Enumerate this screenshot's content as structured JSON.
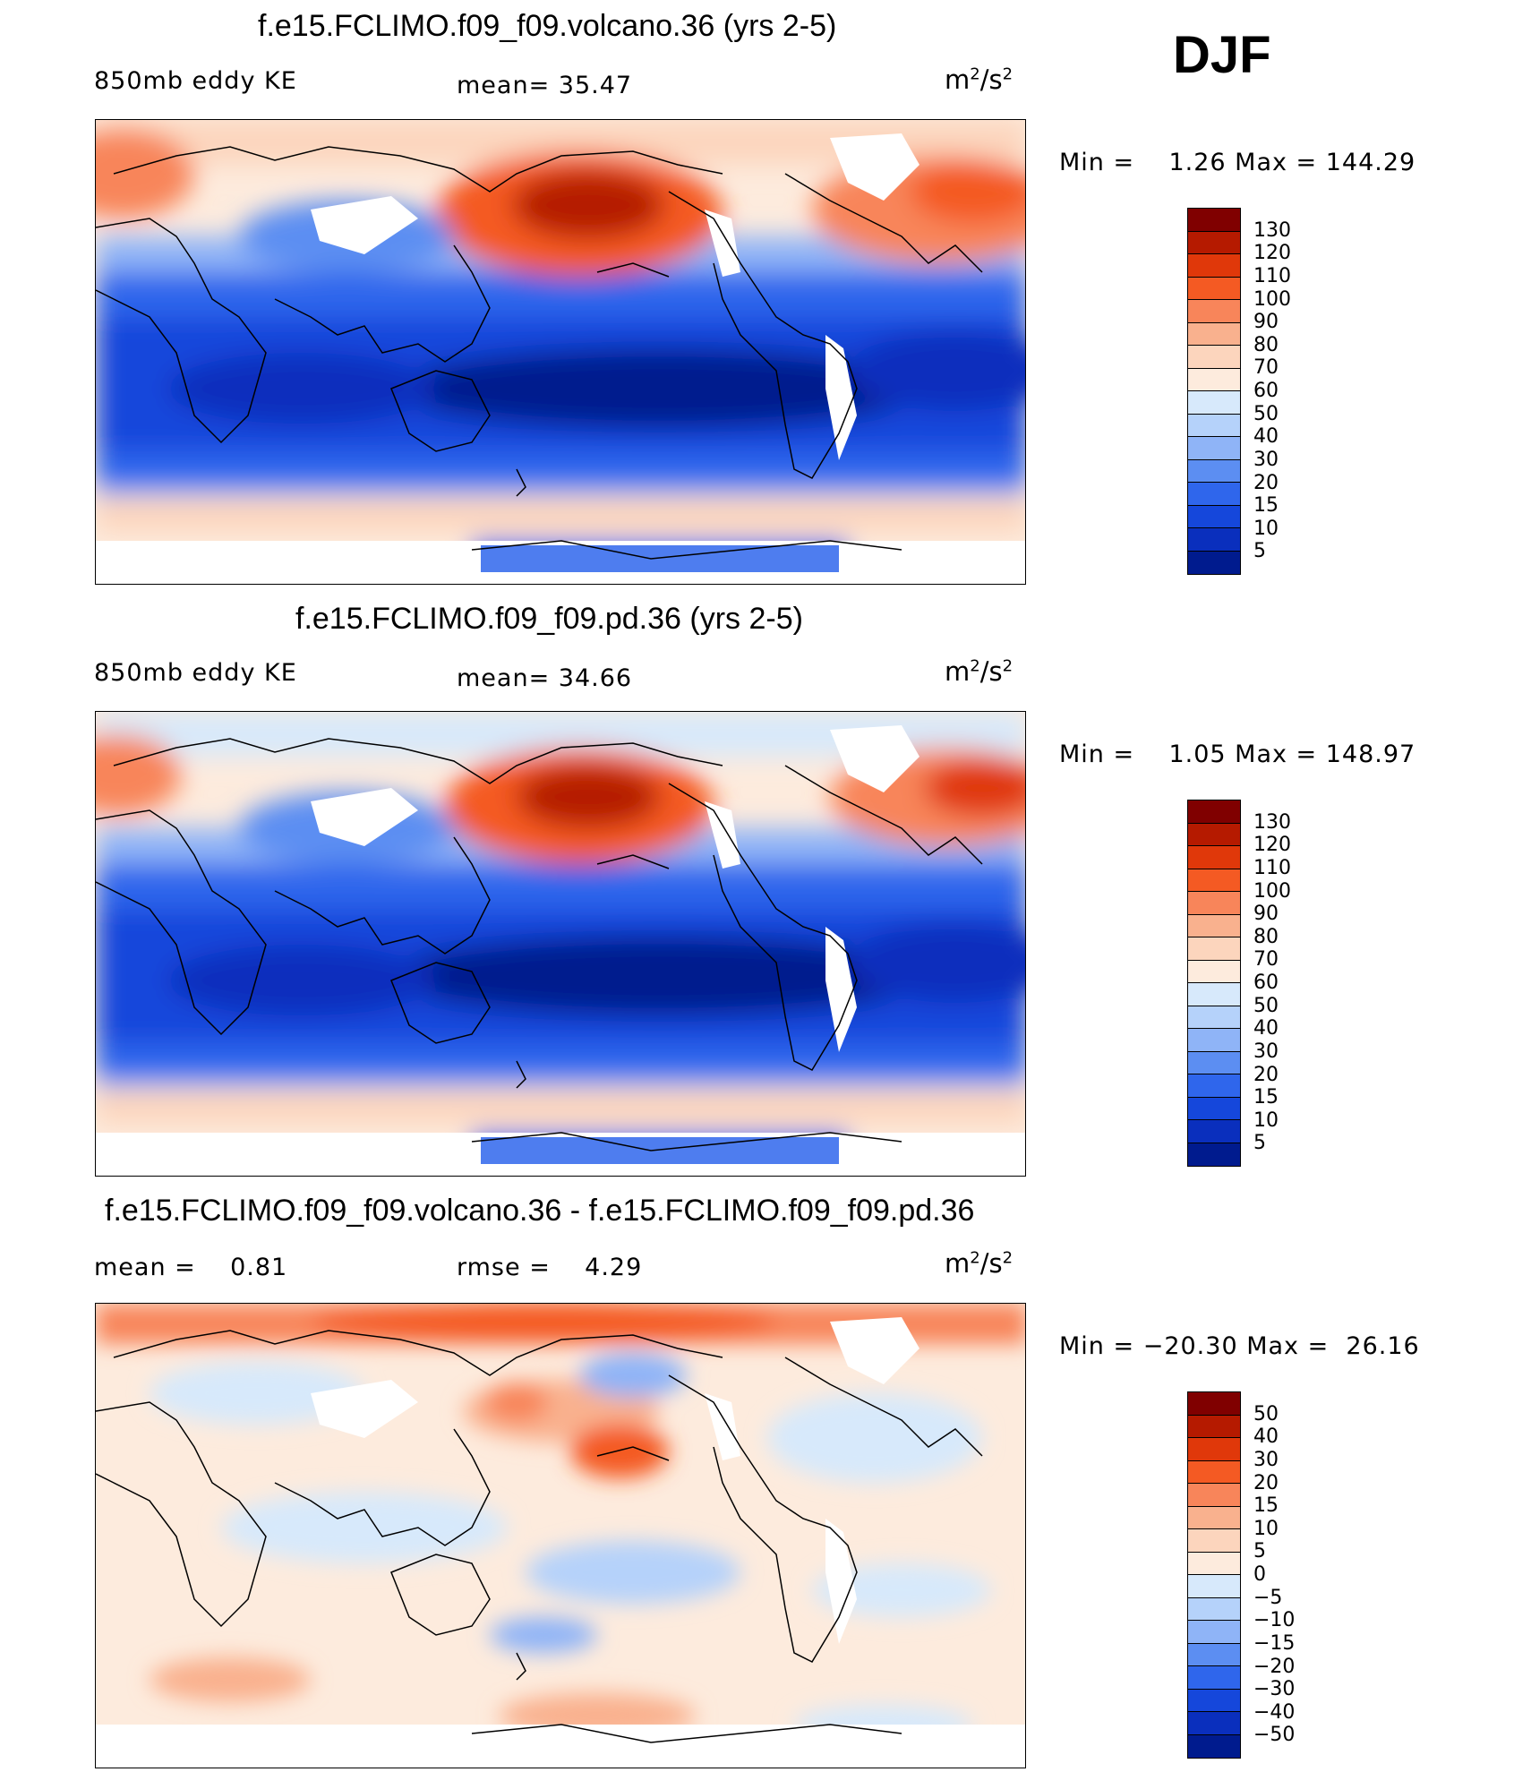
{
  "season": "DJF",
  "panels": [
    {
      "title": "f.e15.FCLIMO.f09_f09.volcano.36 (yrs 2-5)",
      "left_label": "850mb eddy KE",
      "center_label": "mean=  35.47",
      "units_base": "m",
      "units_sup1": "2",
      "units_mid": "/s",
      "units_sup2": "2",
      "min_max": "Min =    1.26 Max = 144.29",
      "colorbar_labels": [
        "130",
        "120",
        "110",
        "100",
        "90",
        "80",
        "70",
        "60",
        "50",
        "40",
        "30",
        "20",
        "15",
        "10",
        "5"
      ],
      "colors": [
        "#800000",
        "#b51a00",
        "#e0380a",
        "#f45a23",
        "#f8855a",
        "#f9b18e",
        "#fcd5bd",
        "#fdebdd",
        "#d7e9fb",
        "#b5d2fa",
        "#8fb4f7",
        "#5c8ef2",
        "#2f66ec",
        "#1547db",
        "#0a2fbd",
        "#001b8e"
      ]
    },
    {
      "title": "f.e15.FCLIMO.f09_f09.pd.36 (yrs 2-5)",
      "left_label": "850mb eddy KE",
      "center_label": "mean=  34.66",
      "units_base": "m",
      "units_sup1": "2",
      "units_mid": "/s",
      "units_sup2": "2",
      "min_max": "Min =    1.05 Max = 148.97",
      "colorbar_labels": [
        "130",
        "120",
        "110",
        "100",
        "90",
        "80",
        "70",
        "60",
        "50",
        "40",
        "30",
        "20",
        "15",
        "10",
        "5"
      ],
      "colors": [
        "#800000",
        "#b51a00",
        "#e0380a",
        "#f45a23",
        "#f8855a",
        "#f9b18e",
        "#fcd5bd",
        "#fdebdd",
        "#d7e9fb",
        "#b5d2fa",
        "#8fb4f7",
        "#5c8ef2",
        "#2f66ec",
        "#1547db",
        "#0a2fbd",
        "#001b8e"
      ]
    },
    {
      "title": "f.e15.FCLIMO.f09_f09.volcano.36 - f.e15.FCLIMO.f09_f09.pd.36",
      "left_label": "mean =    0.81",
      "center_label": "rmse =    4.29",
      "units_base": "m",
      "units_sup1": "2",
      "units_mid": "/s",
      "units_sup2": "2",
      "min_max": "Min = −20.30 Max =  26.16",
      "colorbar_labels": [
        "50",
        "40",
        "30",
        "20",
        "15",
        "10",
        "5",
        "0",
        "−5",
        "−10",
        "−15",
        "−20",
        "−30",
        "−40",
        "−50"
      ],
      "colors": [
        "#800000",
        "#b51a00",
        "#e0380a",
        "#f45a23",
        "#f8855a",
        "#f9b18e",
        "#fcd5bd",
        "#fdebdd",
        "#d7e9fb",
        "#b5d2fa",
        "#8fb4f7",
        "#5c8ef2",
        "#2f66ec",
        "#1547db",
        "#0a2fbd",
        "#001b8e"
      ]
    }
  ]
}
